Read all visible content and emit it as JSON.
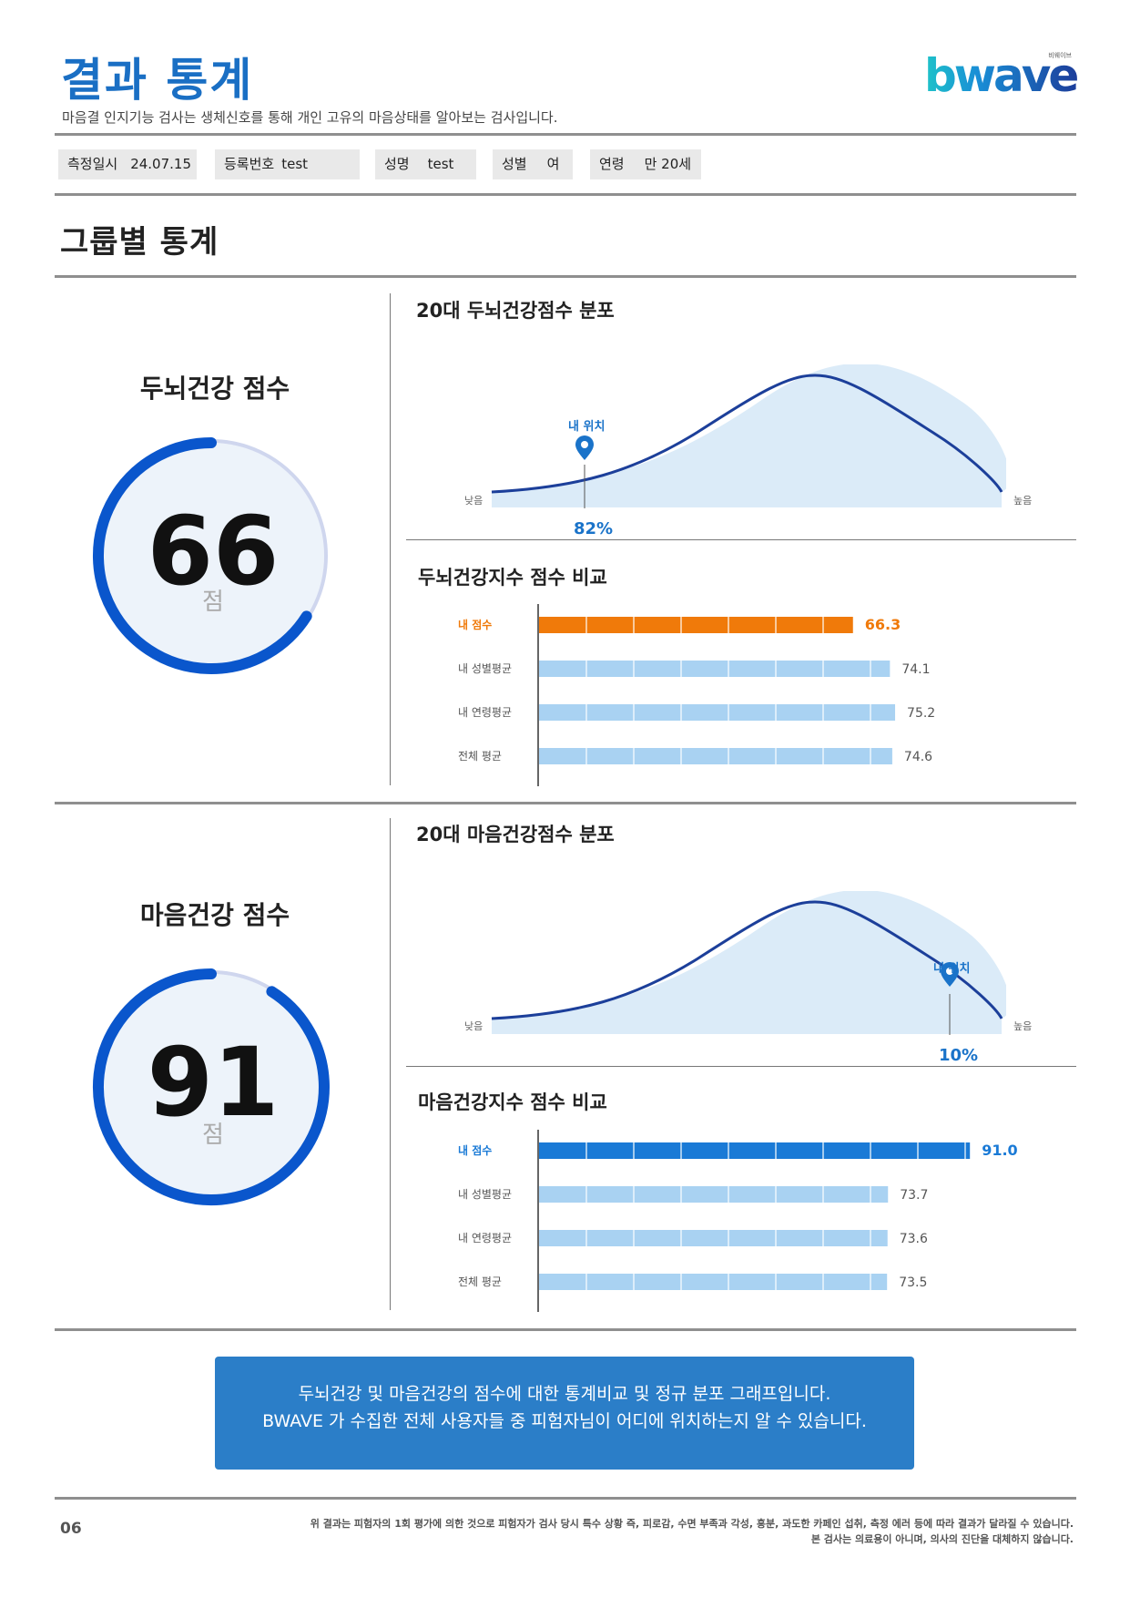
{
  "header": {
    "title": "결과 통계",
    "subtitle": "마음결 인지기능 검사는 생체신호를 통해 개인 고유의 마음상태를 알아보는 검사입니다.",
    "logo_text": "bwave",
    "logo_small_text": "비웨이브"
  },
  "info": {
    "date_label": "측정일시",
    "date_value": "24.07.15",
    "reg_label": "등록번호",
    "reg_value": "test",
    "name_label": "성명",
    "name_value": "test",
    "gender_label": "성별",
    "gender_value": "여",
    "age_label": "연령",
    "age_value": "만 20세"
  },
  "section_title": "그룹별 통계",
  "brain": {
    "score_title": "두뇌건강 점수",
    "score": "66",
    "unit": "점",
    "score_fraction": 0.66,
    "dist_title": "20대 두뇌건강점수 분포",
    "low_label": "낮음",
    "high_label": "높음",
    "position_label": "내 위치",
    "percentile": "82%",
    "compare_title": "두뇌건강지수 점수 비교"
  },
  "mind": {
    "score_title": "마음건강 점수",
    "score": "91",
    "unit": "점",
    "score_fraction": 0.91,
    "dist_title": "20대 마음건강점수 분포",
    "low_label": "낮음",
    "high_label": "높음",
    "position_label": "내 위치",
    "percentile": "10%",
    "compare_title": "마음건강지수 점수 비교"
  },
  "chart_data": [
    {
      "type": "bar",
      "title": "두뇌건강지수 점수 비교",
      "orientation": "horizontal",
      "categories": [
        "내 점수",
        "내 성별평균",
        "내 연령평균",
        "전체 평균"
      ],
      "values": [
        66.3,
        74.1,
        75.2,
        74.6
      ],
      "value_labels": [
        "66.3",
        "74.1",
        "75.2",
        "74.6"
      ],
      "xlim": [
        0,
        100
      ],
      "colors": [
        "#f07a0a",
        "#a9d2f2",
        "#a9d2f2",
        "#a9d2f2"
      ],
      "grid": true
    },
    {
      "type": "bar",
      "title": "마음건강지수 점수 비교",
      "orientation": "horizontal",
      "categories": [
        "내 점수",
        "내 성별평균",
        "내 연령평균",
        "전체 평균"
      ],
      "values": [
        91.0,
        73.7,
        73.6,
        73.5
      ],
      "value_labels": [
        "91.0",
        "73.7",
        "73.6",
        "73.5"
      ],
      "xlim": [
        0,
        100
      ],
      "colors": [
        "#1a7ad6",
        "#a9d2f2",
        "#a9d2f2",
        "#a9d2f2"
      ],
      "grid": true
    }
  ],
  "note": {
    "line1": "두뇌건강 및 마음건강의 점수에 대한 통계비교 및 정규 분포 그래프입니다.",
    "line2": "BWAVE 가 수집한 전체 사용자들 중 피험자님이 어디에 위치하는지 알 수 있습니다."
  },
  "footer": {
    "page": "06",
    "disclaimer1": "위 결과는 피험자의 1회 평가에 의한 것으로 피험자가 검사 당시 특수 상황 즉, 피로감, 수면 부족과 각성, 흥분, 과도한 카페인 섭취, 측정 에러 등에 따라 결과가 달라질 수 있습니다.",
    "disclaimer2": "본 검사는 의료용이 아니며, 의사의 진단을 대체하지 않습니다."
  },
  "colors": {
    "brand_blue": "#1a6fc4",
    "ring_blue": "#0a56cc",
    "ring_track": "#cfd6ee",
    "mine_orange": "#f07a0a",
    "mine_blue": "#1a7ad6",
    "avg_bar": "#a9d2f2"
  }
}
